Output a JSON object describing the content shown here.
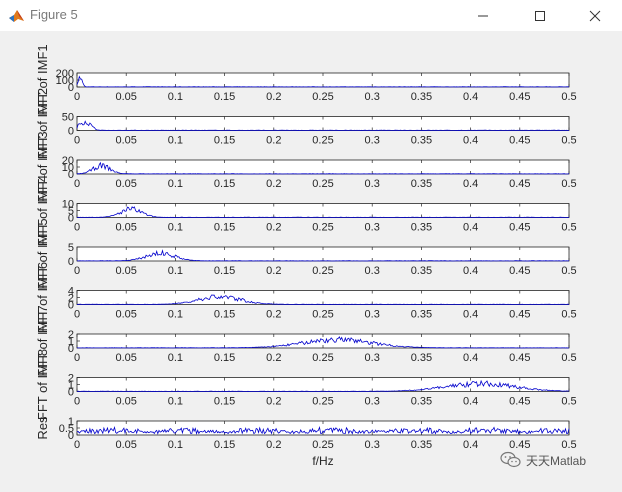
{
  "window": {
    "title": "Figure 5",
    "app_icon": "matlab-icon",
    "controls": [
      "minimize-icon",
      "maximize-icon",
      "close-icon"
    ]
  },
  "watermark": {
    "text": "天天Matlab",
    "icon": "wechat-icon"
  },
  "chart_data": {
    "type": "line",
    "line_color": "#0000cc",
    "xlabel": "f/Hz",
    "xlim": [
      0,
      0.5
    ],
    "xticks": [
      "0",
      "0.05",
      "0.1",
      "0.15",
      "0.2",
      "0.25",
      "0.3",
      "0.35",
      "0.4",
      "0.45",
      "0.5"
    ],
    "grid": false,
    "subplots": [
      {
        "ylabel": "FFT of IMF1",
        "yticks": [
          "0",
          "100",
          "200"
        ],
        "ylim": [
          0,
          200
        ],
        "center": 0.003,
        "width": 0.003,
        "peak": 0.9
      },
      {
        "ylabel": "FFT of IMF2",
        "yticks": [
          "0",
          "50"
        ],
        "ylim": [
          0,
          60
        ],
        "center": 0.008,
        "width": 0.008,
        "peak": 0.9
      },
      {
        "ylabel": "FFT of IMF3",
        "yticks": [
          "0",
          "10",
          "20"
        ],
        "ylim": [
          0,
          20
        ],
        "center": 0.025,
        "width": 0.012,
        "peak": 0.8
      },
      {
        "ylabel": "FFT of IMF4",
        "yticks": [
          "0",
          "5",
          "10"
        ],
        "ylim": [
          0,
          10
        ],
        "center": 0.055,
        "width": 0.015,
        "peak": 0.8
      },
      {
        "ylabel": "FFT of IMF5",
        "yticks": [
          "0",
          "5"
        ],
        "ylim": [
          0,
          8
        ],
        "center": 0.085,
        "width": 0.02,
        "peak": 0.75
      },
      {
        "ylabel": "FFT of IMF6",
        "yticks": [
          "0",
          "2",
          "4"
        ],
        "ylim": [
          0,
          4
        ],
        "center": 0.145,
        "width": 0.03,
        "peak": 0.75
      },
      {
        "ylabel": "FFT of IMF7",
        "yticks": [
          "0",
          "1",
          "2"
        ],
        "ylim": [
          0,
          2
        ],
        "center": 0.265,
        "width": 0.05,
        "peak": 0.8
      },
      {
        "ylabel": "FFT of IMF8",
        "yticks": [
          "0",
          "1",
          "2"
        ],
        "ylim": [
          0,
          2
        ],
        "center": 0.41,
        "width": 0.05,
        "peak": 0.75
      },
      {
        "ylabel": "Res",
        "yticks": [
          "0",
          "0.5",
          "1"
        ],
        "ylim": [
          0,
          1
        ],
        "center": -1,
        "width": 0,
        "peak": 0.45
      }
    ]
  }
}
